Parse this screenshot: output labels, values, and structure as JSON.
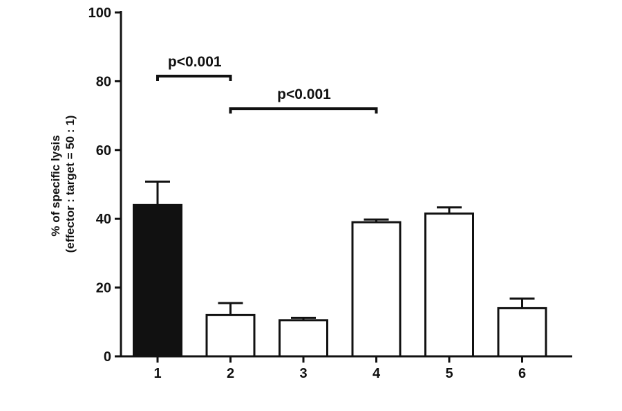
{
  "chart_data": {
    "type": "bar",
    "categories": [
      "1",
      "2",
      "3",
      "4",
      "5",
      "6"
    ],
    "values": [
      44,
      12,
      10.5,
      39,
      41.5,
      14
    ],
    "errors": [
      6.8,
      3.5,
      0.7,
      0.8,
      1.8,
      2.8
    ],
    "fill_colors": [
      "#111111",
      "#ffffff",
      "#ffffff",
      "#ffffff",
      "#ffffff",
      "#ffffff"
    ],
    "ylim": [
      0,
      100
    ],
    "yticks": [
      0,
      20,
      40,
      60,
      80,
      100
    ],
    "ylabel_line1": "% of specific lysis",
    "ylabel_line2": "(effector : target = 50 : 1)",
    "xlabel": "",
    "title": "",
    "grid": false,
    "legend": "none",
    "annotations": [
      {
        "text": "p<0.001",
        "from": "1",
        "to": "2",
        "y": 81.5
      },
      {
        "text": "p<0.001",
        "from": "2",
        "to": "4",
        "y": 72
      }
    ]
  }
}
